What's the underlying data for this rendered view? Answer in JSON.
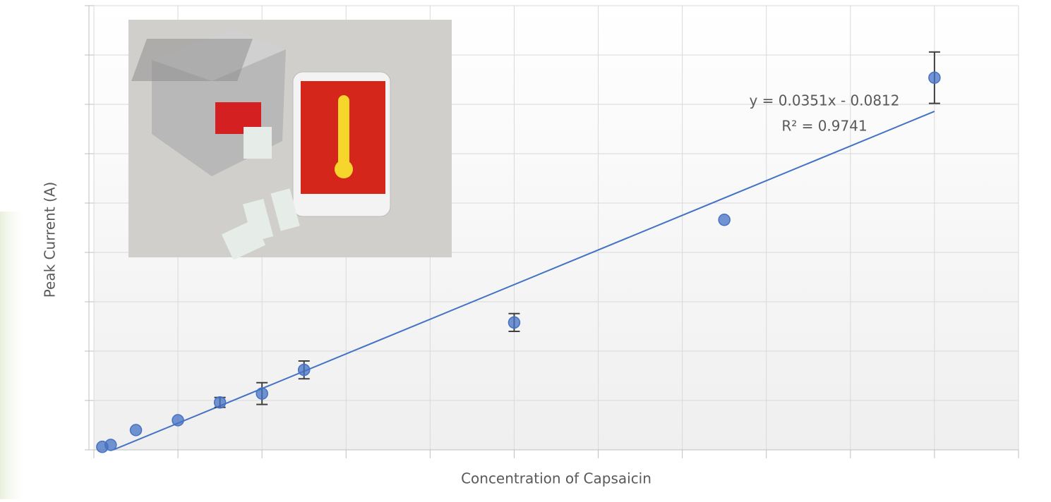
{
  "chart_data": {
    "type": "scatter",
    "x_label": "Concentration of Capsaicin",
    "y_label": "Peak Current (A)",
    "series": [
      {
        "color": "#4472c4",
        "x": [
          1,
          2,
          5,
          10,
          15,
          20,
          25,
          50,
          75,
          100
        ],
        "values": [
          0.03,
          0.05,
          0.2,
          0.3,
          0.48,
          0.57,
          0.81,
          1.29,
          2.33,
          3.77
        ],
        "errors": [
          null,
          null,
          null,
          null,
          0.05,
          0.11,
          0.09,
          0.09,
          null,
          0.26
        ]
      }
    ],
    "trendline": {
      "equation": "y = 0.0351x - 0.0812",
      "r2_label": "R² = 0.9741",
      "slope": 0.0351,
      "intercept": -0.0812,
      "color": "#4472c4"
    },
    "xlim": [
      0,
      110
    ],
    "xticks": [
      0,
      10,
      20,
      30,
      40,
      50,
      60,
      70,
      80,
      90,
      100,
      110
    ],
    "ylim": [
      0,
      4.5
    ],
    "yticks": [
      0,
      0.5,
      1,
      1.5,
      2,
      2.5,
      3,
      3.5,
      4,
      4.5
    ],
    "grid": true
  }
}
